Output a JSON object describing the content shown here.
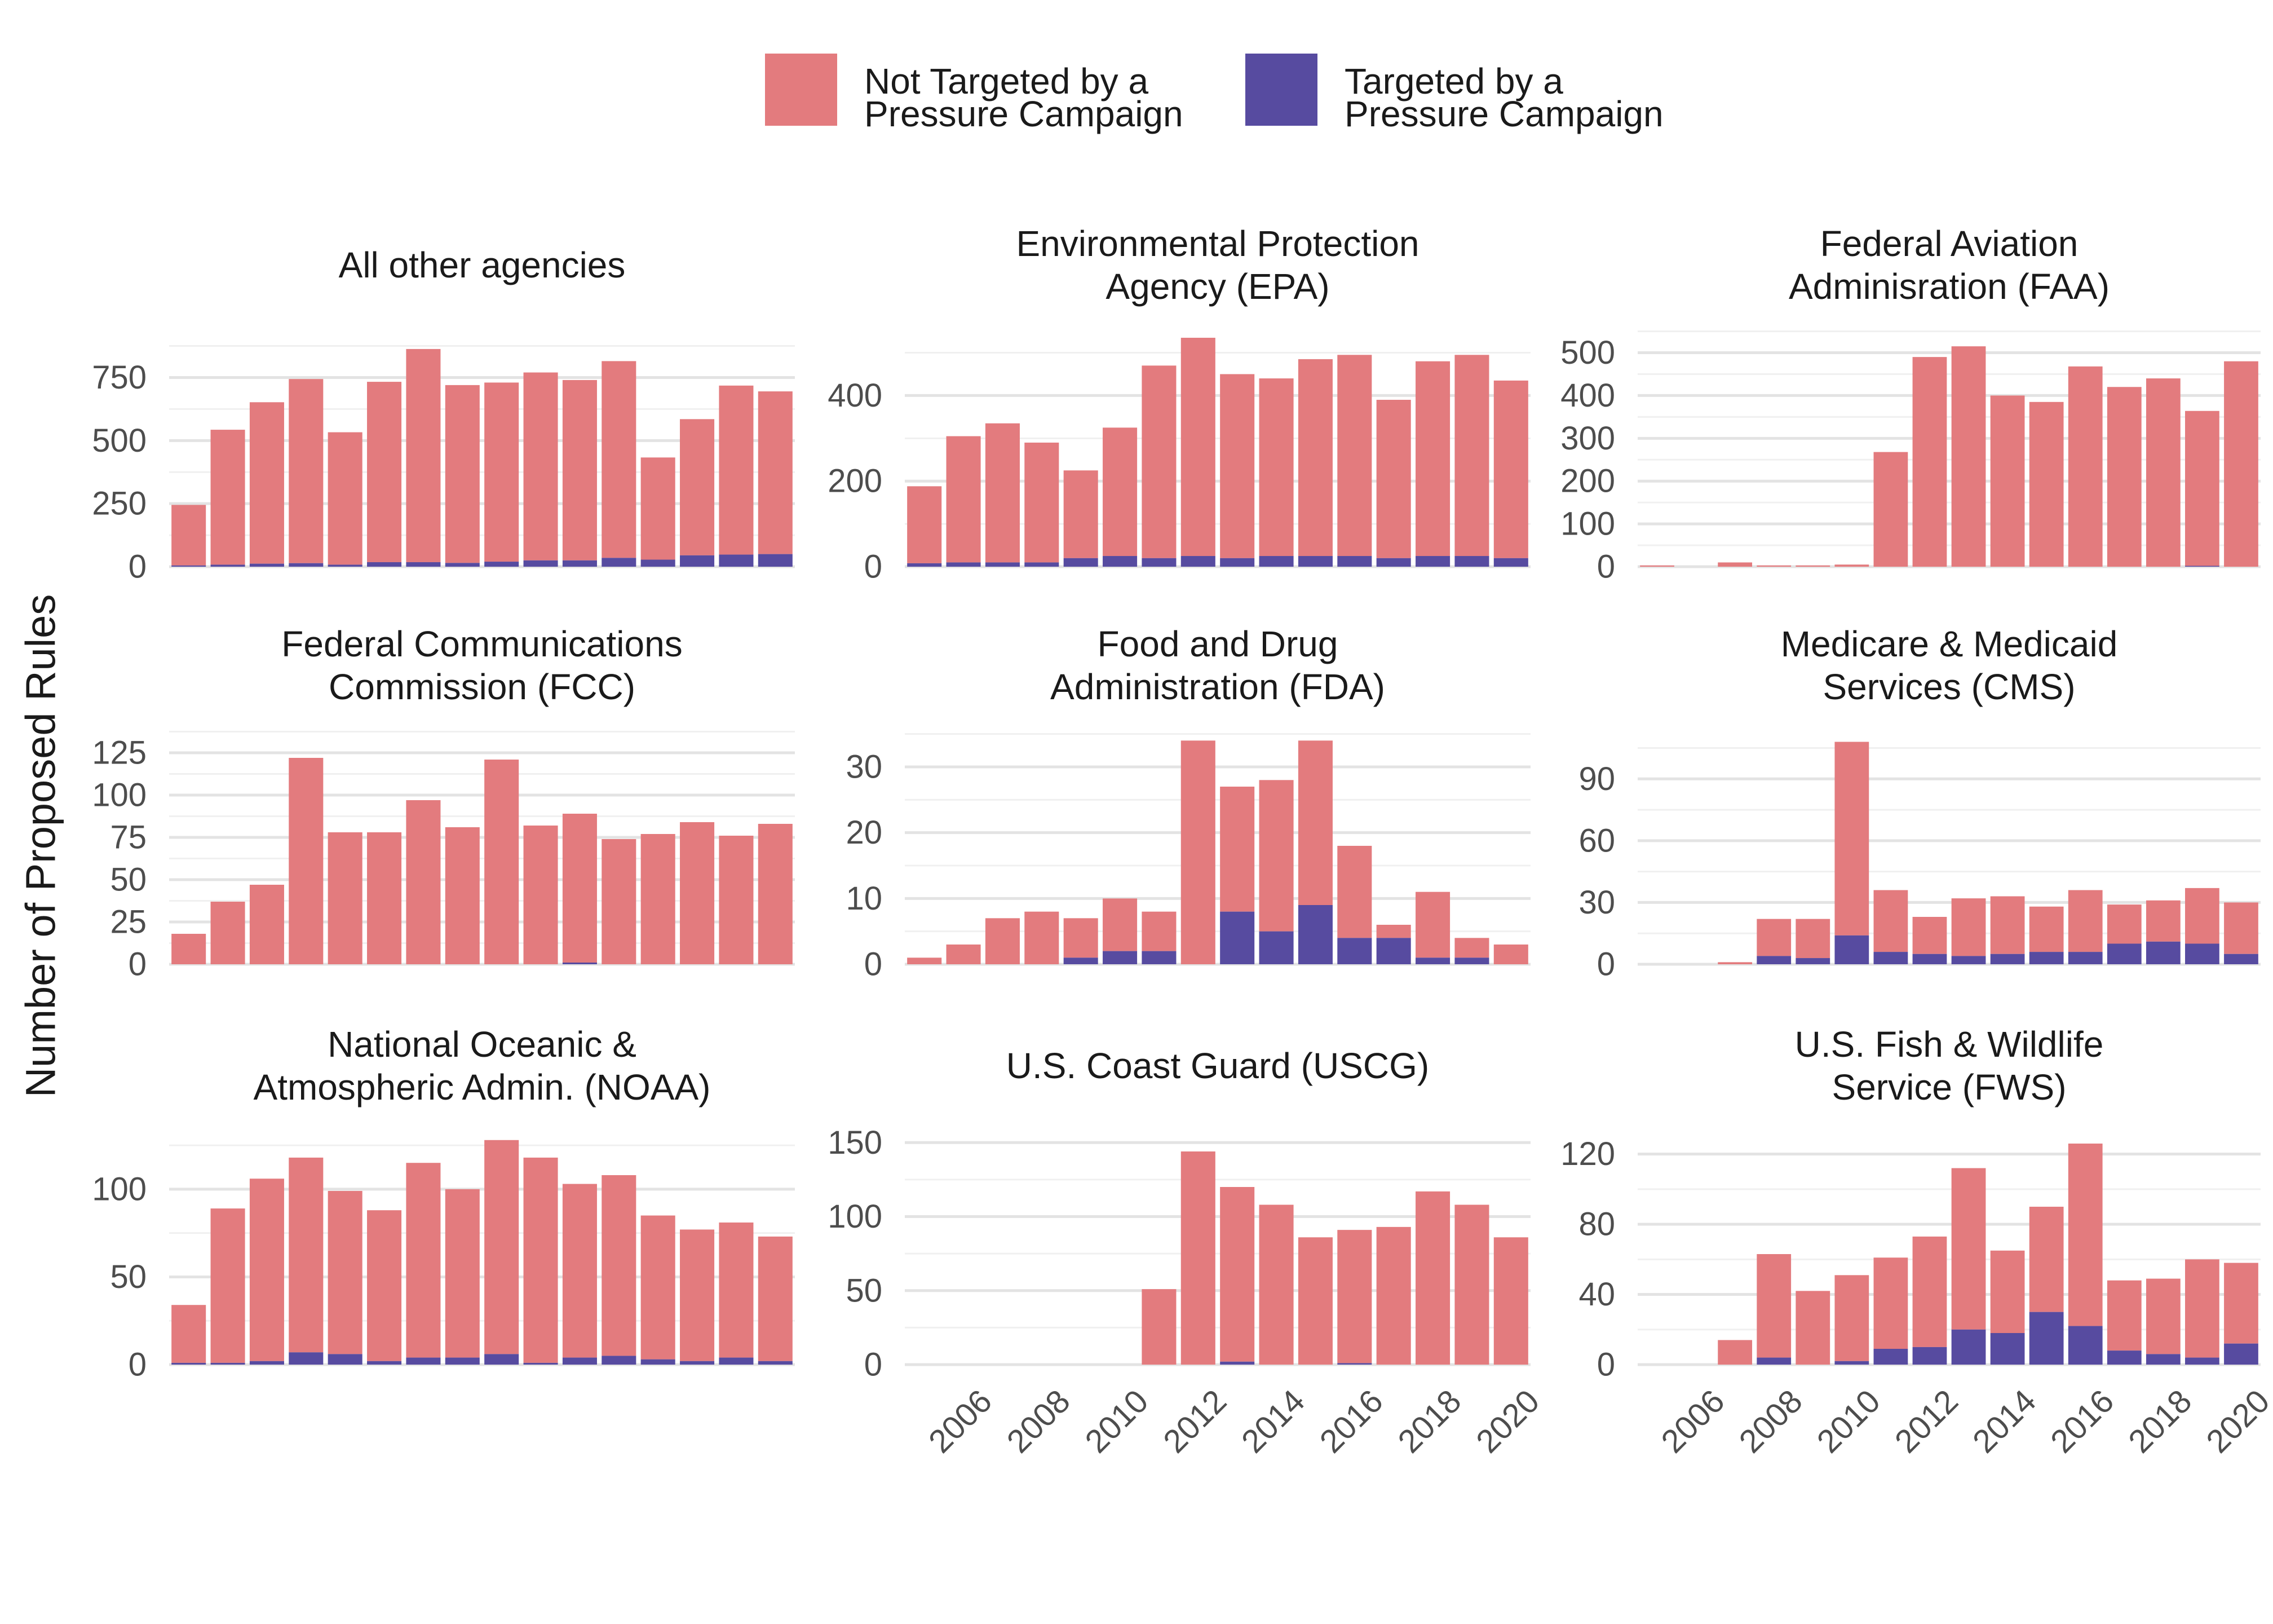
{
  "colors": {
    "not_targeted": "#E37B7E",
    "targeted": "#574BA0"
  },
  "legend": {
    "not_targeted_line1": "Not Targeted by a",
    "not_targeted_line2": "Pressure Campaign",
    "targeted_line1": "Targeted by a",
    "targeted_line2": "Pressure Campaign"
  },
  "ylabel": "Number of Proposed Rules",
  "chart_data": [
    {
      "type": "bar",
      "title": [
        "All other agencies"
      ],
      "x": [
        2005,
        2006,
        2007,
        2008,
        2009,
        2010,
        2011,
        2012,
        2013,
        2014,
        2015,
        2016,
        2017,
        2018,
        2019,
        2020
      ],
      "series": [
        {
          "name": "Not Targeted by a Pressure Campaign",
          "values": [
            240,
            535,
            640,
            730,
            525,
            715,
            845,
            705,
            710,
            745,
            715,
            780,
            405,
            540,
            670,
            645
          ]
        },
        {
          "name": "Targeted by a Pressure Campaign",
          "values": [
            5,
            8,
            12,
            14,
            8,
            18,
            18,
            15,
            20,
            25,
            25,
            35,
            28,
            45,
            48,
            50
          ]
        }
      ],
      "ylim": [
        0,
        950
      ],
      "yticks": [
        "0",
        "250",
        "500",
        "750"
      ],
      "xticks_visible": false
    },
    {
      "type": "bar",
      "title": [
        "Environmental Protection",
        "Agency (EPA)"
      ],
      "x": [
        2005,
        2006,
        2007,
        2008,
        2009,
        2010,
        2011,
        2012,
        2013,
        2014,
        2015,
        2016,
        2017,
        2018,
        2019,
        2020
      ],
      "series": [
        {
          "name": "Not Targeted by a Pressure Campaign",
          "values": [
            180,
            295,
            325,
            280,
            205,
            300,
            450,
            510,
            430,
            415,
            460,
            470,
            370,
            455,
            470,
            415
          ]
        },
        {
          "name": "Targeted by a Pressure Campaign",
          "values": [
            8,
            10,
            10,
            10,
            20,
            25,
            20,
            25,
            20,
            25,
            25,
            25,
            20,
            25,
            25,
            20
          ]
        }
      ],
      "ylim": [
        0,
        560
      ],
      "yticks": [
        "0",
        "200",
        "400"
      ],
      "xticks_visible": false
    },
    {
      "type": "bar",
      "title": [
        "Federal Aviation",
        "Adminisration (FAA)"
      ],
      "x": [
        2005,
        2006,
        2007,
        2008,
        2009,
        2010,
        2011,
        2012,
        2013,
        2014,
        2015,
        2016,
        2017,
        2018,
        2019,
        2020
      ],
      "series": [
        {
          "name": "Not Targeted by a Pressure Campaign",
          "values": [
            3,
            0,
            10,
            3,
            3,
            5,
            268,
            490,
            515,
            400,
            385,
            468,
            420,
            440,
            362,
            480
          ]
        },
        {
          "name": "Targeted by a Pressure Campaign",
          "values": [
            0,
            0,
            0,
            0,
            0,
            0,
            0,
            0,
            0,
            0,
            0,
            0,
            0,
            0,
            2,
            0
          ]
        }
      ],
      "ylim": [
        0,
        560
      ],
      "yticks": [
        "0",
        "100",
        "200",
        "300",
        "400",
        "500"
      ],
      "xticks_visible": false
    },
    {
      "type": "bar",
      "title": [
        "Federal Communications",
        "Commission (FCC)"
      ],
      "x": [
        2005,
        2006,
        2007,
        2008,
        2009,
        2010,
        2011,
        2012,
        2013,
        2014,
        2015,
        2016,
        2017,
        2018,
        2019,
        2020
      ],
      "series": [
        {
          "name": "Not Targeted by a Pressure Campaign",
          "values": [
            18,
            37,
            47,
            122,
            78,
            78,
            97,
            81,
            121,
            82,
            88,
            74,
            77,
            84,
            76,
            83
          ]
        },
        {
          "name": "Targeted by a Pressure Campaign",
          "values": [
            0,
            0,
            0,
            0,
            0,
            0,
            0,
            0,
            0,
            0,
            1,
            0,
            0,
            0,
            0,
            0
          ]
        }
      ],
      "ylim": [
        0,
        140
      ],
      "yticks": [
        "0",
        "25",
        "50",
        "75",
        "100",
        "125"
      ],
      "xticks_visible": false
    },
    {
      "type": "bar",
      "title": [
        "Food and Drug",
        "Administration (FDA)"
      ],
      "x": [
        2005,
        2006,
        2007,
        2008,
        2009,
        2010,
        2011,
        2012,
        2013,
        2014,
        2015,
        2016,
        2017,
        2018,
        2019,
        2020
      ],
      "series": [
        {
          "name": "Not Targeted by a Pressure Campaign",
          "values": [
            1,
            3,
            7,
            8,
            6,
            8,
            6,
            34,
            19,
            23,
            25,
            14,
            2,
            10,
            3,
            3
          ]
        },
        {
          "name": "Targeted by a Pressure Campaign",
          "values": [
            0,
            0,
            0,
            0,
            1,
            2,
            2,
            0,
            8,
            5,
            9,
            4,
            4,
            1,
            1,
            0
          ]
        }
      ],
      "ylim": [
        0,
        36
      ],
      "yticks": [
        "0",
        "10",
        "20",
        "30"
      ],
      "xticks_visible": false
    },
    {
      "type": "bar",
      "title": [
        "Medicare & Medicaid",
        "Services (CMS)"
      ],
      "x": [
        2005,
        2006,
        2007,
        2008,
        2009,
        2010,
        2011,
        2012,
        2013,
        2014,
        2015,
        2016,
        2017,
        2018,
        2019,
        2020
      ],
      "series": [
        {
          "name": "Not Targeted by a Pressure Campaign",
          "values": [
            0,
            0,
            1,
            18,
            19,
            94,
            30,
            18,
            28,
            28,
            22,
            30,
            19,
            20,
            27,
            25
          ]
        },
        {
          "name": "Targeted by a Pressure Campaign",
          "values": [
            0,
            0,
            0,
            4,
            3,
            14,
            6,
            5,
            4,
            5,
            6,
            6,
            10,
            11,
            10,
            5
          ]
        }
      ],
      "ylim": [
        0,
        115
      ],
      "yticks": [
        "0",
        "30",
        "60",
        "90"
      ],
      "xticks_visible": false
    },
    {
      "type": "bar",
      "title": [
        "National Oceanic &",
        "Atmospheric Admin. (NOAA)"
      ],
      "x": [
        2005,
        2006,
        2007,
        2008,
        2009,
        2010,
        2011,
        2012,
        2013,
        2014,
        2015,
        2016,
        2017,
        2018,
        2019,
        2020
      ],
      "series": [
        {
          "name": "Not Targeted by a Pressure Campaign",
          "values": [
            33,
            88,
            104,
            111,
            93,
            86,
            111,
            96,
            122,
            117,
            99,
            103,
            82,
            75,
            77,
            71
          ]
        },
        {
          "name": "Targeted by a Pressure Campaign",
          "values": [
            1,
            1,
            2,
            7,
            6,
            2,
            4,
            4,
            6,
            1,
            4,
            5,
            3,
            2,
            4,
            2
          ]
        }
      ],
      "ylim": [
        0,
        135
      ],
      "yticks": [
        "0",
        "50",
        "100"
      ],
      "xticks_visible": false
    },
    {
      "type": "bar",
      "title": [
        "U.S. Coast Guard (USCG)"
      ],
      "x": [
        2005,
        2006,
        2007,
        2008,
        2009,
        2010,
        2011,
        2012,
        2013,
        2014,
        2015,
        2016,
        2017,
        2018,
        2019,
        2020
      ],
      "series": [
        {
          "name": "Not Targeted by a Pressure Campaign",
          "values": [
            0,
            0,
            0,
            0,
            0,
            0,
            51,
            144,
            118,
            108,
            86,
            90,
            93,
            117,
            108,
            86
          ]
        },
        {
          "name": "Targeted by a Pressure Campaign",
          "values": [
            0,
            0,
            0,
            0,
            0,
            0,
            0,
            0,
            2,
            0,
            0,
            1,
            0,
            0,
            0,
            0
          ]
        }
      ],
      "ylim": [
        0,
        160
      ],
      "yticks": [
        "0",
        "50",
        "100",
        "150"
      ],
      "xticks": [
        "2006",
        "2008",
        "2010",
        "2012",
        "2014",
        "2016",
        "2018",
        "2020"
      ],
      "xticks_visible": true
    },
    {
      "type": "bar",
      "title": [
        "U.S. Fish & Wildlife",
        "Service (FWS)"
      ],
      "x": [
        2005,
        2006,
        2007,
        2008,
        2009,
        2010,
        2011,
        2012,
        2013,
        2014,
        2015,
        2016,
        2017,
        2018,
        2019,
        2020
      ],
      "series": [
        {
          "name": "Not Targeted by a Pressure Campaign",
          "values": [
            0,
            0,
            14,
            59,
            42,
            49,
            52,
            63,
            92,
            47,
            60,
            104,
            40,
            43,
            56,
            46
          ]
        },
        {
          "name": "Targeted by a Pressure Campaign",
          "values": [
            0,
            0,
            0,
            4,
            0,
            2,
            9,
            10,
            20,
            18,
            30,
            22,
            8,
            6,
            4,
            12
          ]
        }
      ],
      "ylim": [
        0,
        135
      ],
      "yticks": [
        "0",
        "40",
        "80",
        "120"
      ],
      "xticks": [
        "2006",
        "2008",
        "2010",
        "2012",
        "2014",
        "2016",
        "2018",
        "2020"
      ],
      "xticks_visible": true
    }
  ]
}
